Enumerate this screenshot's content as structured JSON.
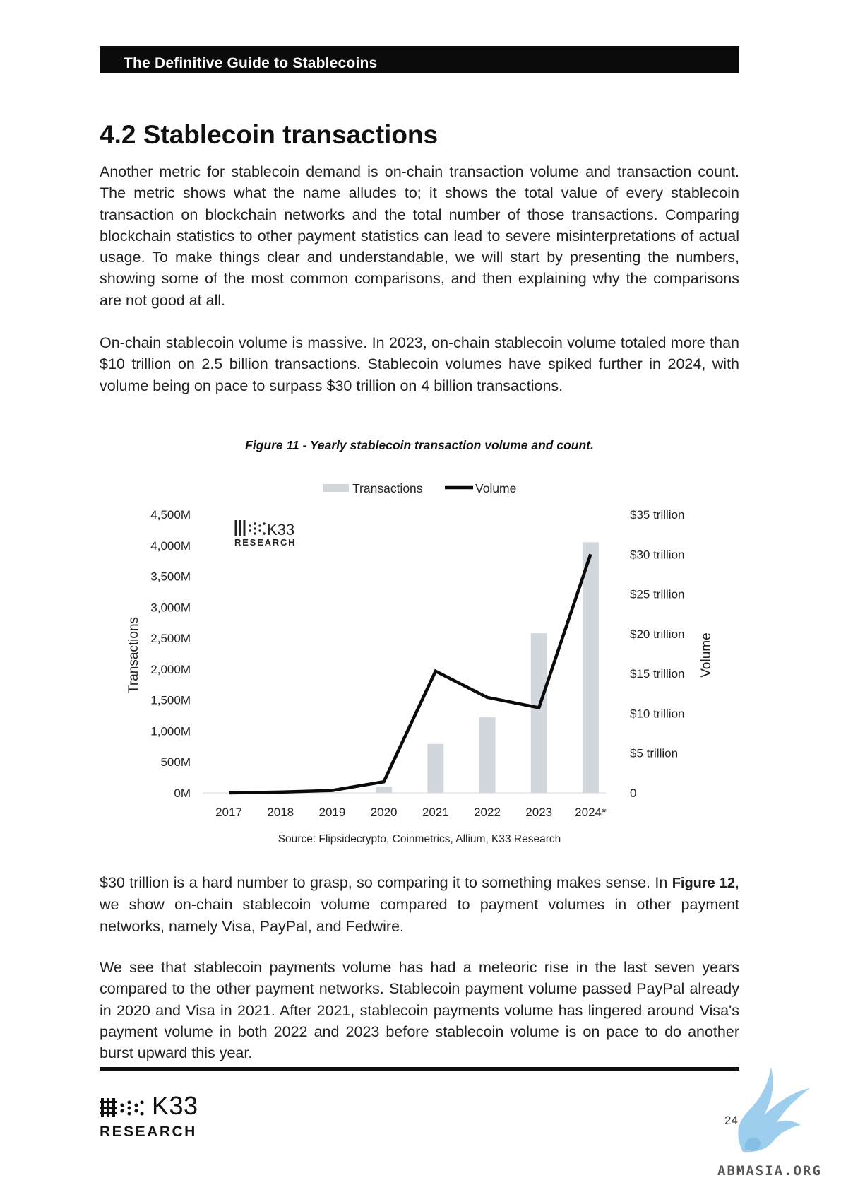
{
  "header": {
    "title": "The Definitive Guide to Stablecoins"
  },
  "section": {
    "title": "4.2 Stablecoin transactions"
  },
  "paragraphs": {
    "p1": "Another metric for stablecoin demand is on-chain transaction volume and transaction count. The metric shows what the name alludes to; it shows the total value of every stablecoin transaction on blockchain networks and the total number of those transactions. Comparing blockchain statistics to other payment statistics can lead to severe misinterpretations of actual usage. To make things clear and understandable, we will start by presenting the numbers, showing some of the most common comparisons, and then explaining why the comparisons are not good at all.",
    "p2": "On-chain stablecoin volume is massive. In 2023, on-chain stablecoin volume totaled more than $10 trillion on 2.5 billion transactions. Stablecoin volumes have spiked further in 2024, with volume being on pace to surpass $30 trillion on 4 billion transactions.",
    "p3_before": "$30 trillion is a hard number to grasp, so comparing it to something makes sense. In ",
    "p3_bold": "Figure 12",
    "p3_after": ", we show on-chain stablecoin volume compared to payment volumes in other payment networks, namely Visa, PayPal, and Fedwire.",
    "p4": "We see that stablecoin payments volume has had a meteoric rise in the last seven years compared to the other payment networks. Stablecoin payment volume passed PayPal already in 2020 and Visa in 2021. After 2021, stablecoin payments volume has lingered around Visa's payment volume in both 2022 and 2023 before stablecoin volume is on pace to do another burst upward this year."
  },
  "figure": {
    "caption": "Figure 11 - Yearly stablecoin transaction volume and count.",
    "source": "Source: Flipsidecrypto, Coinmetrics, Allium, K33 Research",
    "logo_word": "K33",
    "logo_sub": "RESEARCH"
  },
  "chart_data": {
    "type": "bar",
    "categories": [
      "2017",
      "2018",
      "2019",
      "2020",
      "2021",
      "2022",
      "2023",
      "2024*"
    ],
    "series": [
      {
        "name": "Transactions",
        "type": "bar",
        "axis": "left",
        "color": "#d2d7dd",
        "values": [
          0,
          0,
          10,
          100,
          790,
          1220,
          2580,
          4050
        ]
      },
      {
        "name": "Volume",
        "type": "line",
        "axis": "right",
        "color": "#0a0a0a",
        "values": [
          0,
          0.1,
          0.3,
          1.4,
          15.3,
          12.0,
          10.7,
          30.0
        ]
      }
    ],
    "ylabel_left": "Transactions",
    "ylabel_right": "Volume",
    "yticks_left": [
      "4,500M",
      "4,000M",
      "3,500M",
      "3,000M",
      "2,500M",
      "2,000M",
      "1,500M",
      "1,000M",
      "500M",
      "0M"
    ],
    "yticks_right": [
      "$35 trillion",
      "$30 trillion",
      "$25 trillion",
      "$20 trillion",
      "$15 trillion",
      "$10 trillion",
      "$5 trillion",
      "0"
    ],
    "ylim_left": [
      0,
      4500
    ],
    "ylim_right": [
      0,
      35
    ],
    "legend_placement": "top-center",
    "grid": false
  },
  "footer": {
    "logo_word": "K33",
    "logo_sub": "RESEARCH",
    "page_number": "24",
    "watermark": "ABMASIA.ORG"
  }
}
